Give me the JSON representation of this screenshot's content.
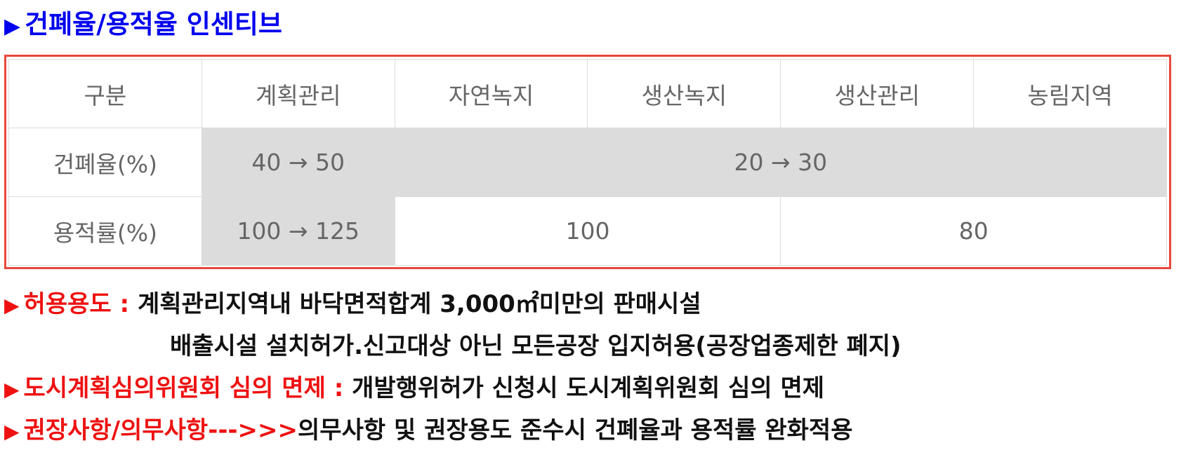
{
  "heading": {
    "marker": "▶",
    "title": "건폐율/용적율 인센티브"
  },
  "table": {
    "headers": [
      "구분",
      "계획관리",
      "자연녹지",
      "생산녹지",
      "생산관리",
      "농림지역"
    ],
    "bcr": {
      "label": "건폐율(%)",
      "planned": "40 → 50",
      "others": "20 → 30"
    },
    "far": {
      "label": "용적률(%)",
      "planned": "100 → 125",
      "group_a": "100",
      "group_b": "80"
    }
  },
  "notes": {
    "marker": "▶",
    "allowed": {
      "label": "허용용도 :",
      "line1": "계획관리지역내 바닥면적합계 3,000㎡미만의 판매시설",
      "line2": "배출시설 설치허가.신고대상 아닌 모든공장 입지허용(공장업종제한 폐지)"
    },
    "exemption": {
      "label": "도시계획심의위원회 심의 면제 :",
      "text": "개발행위허가 신청시 도시계획위원회 심의 면제"
    },
    "recommend": {
      "label": "권장사항/의무사항--->>>",
      "text": "의무사항 및 권장용도 준수시 건폐율과 용적률 완화적용"
    }
  }
}
